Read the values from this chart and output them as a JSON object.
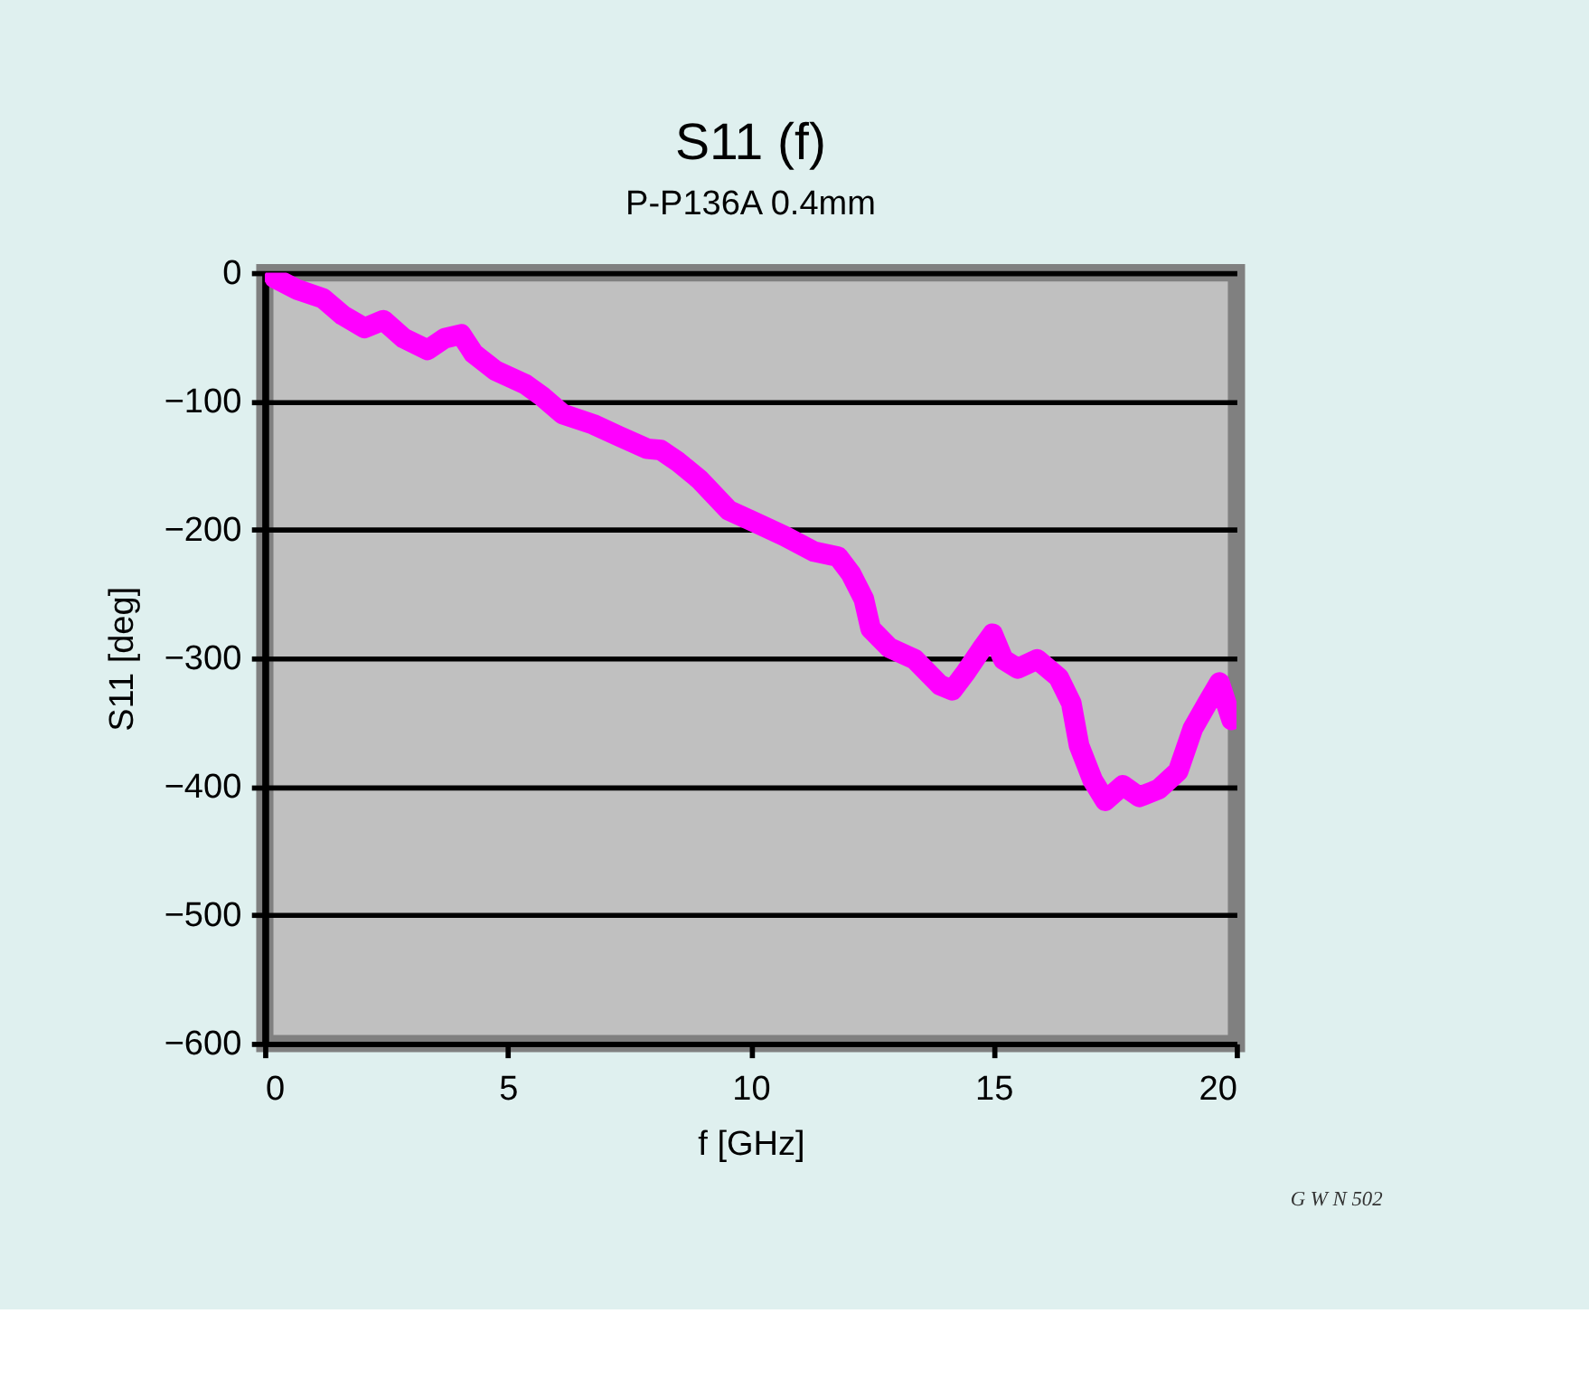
{
  "chart_data": {
    "type": "line",
    "title": "S11 (f)",
    "subtitle": "P-P136A  0.4mm",
    "xlabel": "f [GHz]",
    "ylabel": "S11 [deg]",
    "annotations": [
      "G W N 502"
    ],
    "x": [
      0.2,
      0.66,
      1.2,
      1.6,
      2.05,
      2.44,
      2.86,
      3.35,
      3.7,
      4.04,
      4.3,
      4.74,
      5.37,
      5.7,
      6.13,
      6.76,
      7.28,
      7.87,
      8.15,
      8.5,
      8.95,
      9.55,
      10.07,
      10.7,
      11.3,
      11.8,
      12.06,
      12.33,
      12.47,
      12.86,
      13.38,
      13.9,
      14.15,
      14.43,
      14.77,
      14.98,
      15.2,
      15.5,
      15.9,
      16.34,
      16.6,
      16.76,
      17.04,
      17.3,
      17.66,
      18.0,
      18.4,
      18.8,
      19.1,
      19.4,
      19.65,
      19.9
    ],
    "series": [
      {
        "color": "#ff00ff",
        "values": [
          -4,
          -13,
          -20,
          -33,
          -43,
          -37,
          -51,
          -60,
          -51,
          -48,
          -63,
          -76,
          -87,
          -96,
          -110,
          -118,
          -127,
          -137,
          -138,
          -147,
          -161,
          -185,
          -194,
          -205,
          -217,
          -221,
          -234,
          -254,
          -277,
          -292,
          -301,
          -321,
          -325,
          -311,
          -292,
          -281,
          -301,
          -308,
          -301,
          -315,
          -335,
          -368,
          -395,
          -411,
          -399,
          -408,
          -402,
          -388,
          -355,
          -335,
          -319,
          -348
        ]
      }
    ],
    "xlim": [
      0,
      20
    ],
    "xticks": [
      0,
      5,
      10,
      15,
      20
    ],
    "ylim": [
      -600,
      0
    ],
    "yticks": [
      0,
      -100,
      -200,
      -300,
      -400,
      -500,
      -600
    ],
    "grid": "y",
    "line_style": "solid",
    "marker": "none",
    "legend": false
  }
}
